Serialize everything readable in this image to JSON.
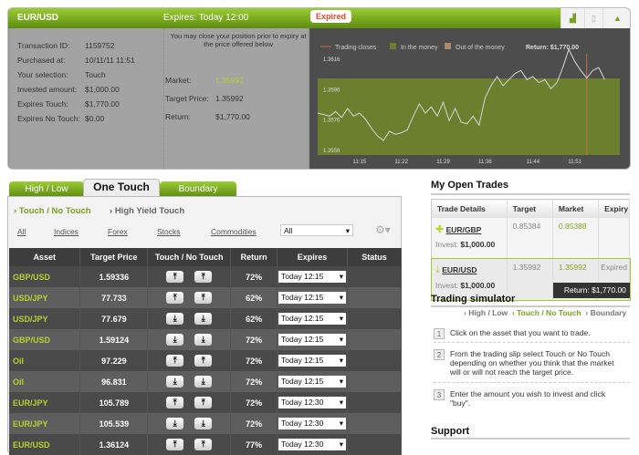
{
  "trade": {
    "pair": "EUR/USD",
    "expires": "Expires: Today 12:00",
    "status": "Expired",
    "details": [
      {
        "label": "Transaction ID:",
        "value": "1159752"
      },
      {
        "label": "Purchased at:",
        "value": "10/11/11 11:51"
      },
      {
        "label": "Your selection:",
        "value": "Touch"
      },
      {
        "label": "Invested amount:",
        "value": "$1,000.00"
      },
      {
        "label": "Expires Touch:",
        "value": "$1,770.00"
      },
      {
        "label": "Expires No Touch:",
        "value": "$0.00"
      }
    ],
    "note": "You may close your position prior to expiry at the price offered below",
    "market_label": "Market:",
    "market": "1.35992",
    "target_label": "Target Price:",
    "target": "1.35992",
    "return_label": "Return:",
    "return": "$1,770.00"
  },
  "chart_data": {
    "type": "line",
    "legend": [
      "Trading closes",
      "In the money",
      "Out of the money"
    ],
    "return_text": "Return: $1,770.00",
    "colors": {
      "line": "#d8d8d8",
      "in_money": "#6b7f2e",
      "closes": "#c8694a"
    },
    "yticks": [
      "1.3616",
      "1.3596",
      "1.3576",
      "1.3556"
    ],
    "ylim": [
      1.3556,
      1.3616
    ],
    "xticks": [
      "11:15",
      "11:22",
      "11:29",
      "11:36",
      "11:44",
      "11:51"
    ],
    "target": 1.35992,
    "trading_closes": "11:53",
    "x": [
      "11:08",
      "11:09",
      "11:10",
      "11:11",
      "11:12",
      "11:13",
      "11:14",
      "11:15",
      "11:16",
      "11:17",
      "11:18",
      "11:19",
      "11:20",
      "11:21",
      "11:22",
      "11:23",
      "11:24",
      "11:25",
      "11:26",
      "11:27",
      "11:28",
      "11:29",
      "11:30",
      "11:31",
      "11:32",
      "11:33",
      "11:34",
      "11:35",
      "11:36",
      "11:37",
      "11:38",
      "11:39",
      "11:40",
      "11:41",
      "11:42",
      "11:43",
      "11:44",
      "11:45",
      "11:46",
      "11:47",
      "11:48",
      "11:49",
      "11:50",
      "11:51",
      "11:52",
      "11:53",
      "11:54",
      "11:55",
      "11:56"
    ],
    "y": [
      1.358,
      1.3579,
      1.3578,
      1.3581,
      1.3577,
      1.3583,
      1.3578,
      1.358,
      1.3576,
      1.357,
      1.3565,
      1.3562,
      1.3568,
      1.3566,
      1.3567,
      1.3569,
      1.3578,
      1.3586,
      1.358,
      1.3584,
      1.3578,
      1.3587,
      1.3575,
      1.3583,
      1.3574,
      1.3573,
      1.3578,
      1.3572,
      1.359,
      1.3598,
      1.3604,
      1.3598,
      1.3602,
      1.3606,
      1.3608,
      1.3602,
      1.3604,
      1.36,
      1.3602,
      1.3596,
      1.36,
      1.361,
      1.3622,
      1.3614,
      1.3608,
      1.3603,
      1.3608,
      1.361,
      1.3602
    ]
  },
  "tabs": [
    "High / Low",
    "One Touch",
    "Boundary"
  ],
  "subtabs": [
    "Touch / No Touch",
    "High Yield Touch"
  ],
  "filters": [
    "All",
    "Indices",
    "Forex",
    "Stocks",
    "Commodities"
  ],
  "filter_select": "All",
  "table": {
    "headers": [
      "Asset",
      "Target Price",
      "Touch / No Touch",
      "Return",
      "Expires",
      "Status"
    ],
    "rows": [
      {
        "asset": "GBP/USD",
        "target": "1.59336",
        "dir": "up",
        "ret": "72%",
        "exp": "Today 12:15"
      },
      {
        "asset": "USD/JPY",
        "target": "77.733",
        "dir": "up",
        "ret": "62%",
        "exp": "Today 12:15"
      },
      {
        "asset": "USD/JPY",
        "target": "77.679",
        "dir": "down",
        "ret": "62%",
        "exp": "Today 12:15"
      },
      {
        "asset": "GBP/USD",
        "target": "1.59124",
        "dir": "down",
        "ret": "72%",
        "exp": "Today 12:15"
      },
      {
        "asset": "Oil",
        "target": "97.229",
        "dir": "up",
        "ret": "72%",
        "exp": "Today 12:15"
      },
      {
        "asset": "Oil",
        "target": "96.831",
        "dir": "down",
        "ret": "72%",
        "exp": "Today 12:15"
      },
      {
        "asset": "EUR/JPY",
        "target": "105.789",
        "dir": "up",
        "ret": "72%",
        "exp": "Today 12:30"
      },
      {
        "asset": "EUR/JPY",
        "target": "105.539",
        "dir": "down",
        "ret": "72%",
        "exp": "Today 12:30"
      },
      {
        "asset": "EUR/USD",
        "target": "1.36124",
        "dir": "up",
        "ret": "77%",
        "exp": "Today 12:30"
      }
    ]
  },
  "open_trades": {
    "title": "My Open Trades",
    "headers": [
      "Trade Details",
      "Target",
      "Market",
      "Expiry"
    ],
    "rows": [
      {
        "asset": "EUR/GBP",
        "invest_label": "Invest:",
        "invest": "$1,000.00",
        "target": "0.85384",
        "market": "0.85388",
        "expiry": ""
      },
      {
        "asset": "EUR/USD",
        "invest_label": "Invest:",
        "invest": "$1,000.00",
        "target": "1.35992",
        "market": "1.35992",
        "expiry": "Expired",
        "return": "Return: $1,770.00"
      }
    ]
  },
  "simulator": {
    "title": "Trading simulator",
    "links": [
      "High / Low",
      "Touch / No Touch",
      "Boundary"
    ],
    "steps": [
      {
        "n": "1",
        "text": "Click on the asset that you want to trade."
      },
      {
        "n": "2",
        "text": "From the trading slip select Touch or  No Touch depending on whether you think that the market will or will not reach the target price."
      },
      {
        "n": "3",
        "text": "Enter the amount you wish to invest and click \"buy\"."
      }
    ]
  },
  "support": {
    "title": "Support"
  }
}
